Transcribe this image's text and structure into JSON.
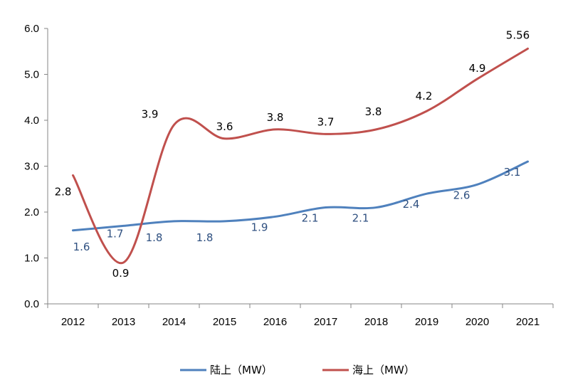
{
  "chart_data": {
    "type": "line",
    "title": "",
    "xlabel": "",
    "ylabel": "",
    "categories": [
      "2012",
      "2013",
      "2014",
      "2015",
      "2016",
      "2017",
      "2018",
      "2019",
      "2020",
      "2021"
    ],
    "ylim": [
      0,
      6
    ],
    "yticks": [
      "0.0",
      "1.0",
      "2.0",
      "3.0",
      "4.0",
      "5.0",
      "6.0"
    ],
    "grid": false,
    "legend_position": "bottom",
    "series": [
      {
        "name": "陆上（MW）",
        "color": "#4f81bd",
        "label_color": "#2f5080",
        "values": [
          1.6,
          1.7,
          1.8,
          1.8,
          1.9,
          2.1,
          2.1,
          2.4,
          2.6,
          3.1
        ],
        "labels": [
          "1.6",
          "1.7",
          "1.8",
          "1.8",
          "1.9",
          "2.1",
          "2.1",
          "2.4",
          "2.6",
          "3.1"
        ]
      },
      {
        "name": "海上（MW）",
        "color": "#c0504d",
        "label_color": "#000000",
        "values": [
          2.8,
          0.9,
          3.9,
          3.6,
          3.8,
          3.7,
          3.8,
          4.2,
          4.9,
          5.56
        ],
        "labels": [
          "2.8",
          "0.9",
          "3.9",
          "3.6",
          "3.8",
          "3.7",
          "3.8",
          "4.2",
          "4.9",
          "5.56"
        ]
      }
    ]
  }
}
